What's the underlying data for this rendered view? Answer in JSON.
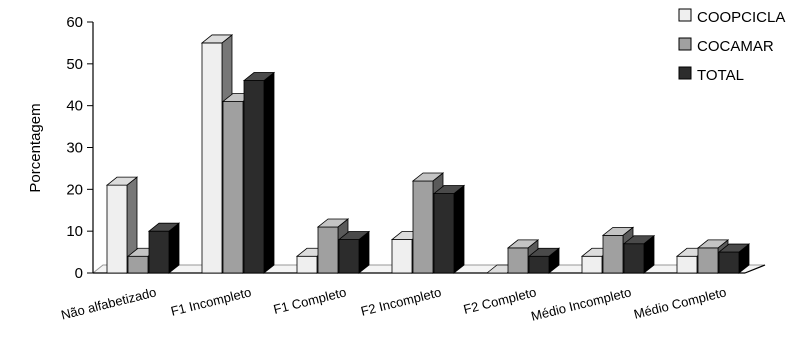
{
  "chart_data": {
    "type": "bar",
    "title": "",
    "xlabel": "",
    "ylabel": "Porcentagem",
    "ylim": [
      0,
      60
    ],
    "yticks": [
      0,
      10,
      20,
      30,
      40,
      50,
      60
    ],
    "grid": false,
    "legend_position": "top-right",
    "categories": [
      "Não alfabetizado",
      "F1 Incompleto",
      "F1 Completo",
      "F2 Incompleto",
      "F2 Completo",
      "Médio Incompleto",
      "Médio Completo"
    ],
    "series": [
      {
        "name": "COOPCICLA",
        "values": [
          21,
          55,
          4,
          8,
          0,
          4,
          4
        ],
        "color": "#efefef",
        "side": "#777777",
        "top": "#dddddd"
      },
      {
        "name": "COCAMAR",
        "values": [
          4,
          41,
          11,
          22,
          6,
          9,
          6
        ],
        "color": "#a0a0a0",
        "side": "#5a5a5a",
        "top": "#c4c4c4"
      },
      {
        "name": "TOTAL",
        "values": [
          10,
          46,
          8,
          19,
          4,
          7,
          5
        ],
        "color": "#2c2c2c",
        "side": "#000000",
        "top": "#4a4a4a"
      }
    ]
  }
}
